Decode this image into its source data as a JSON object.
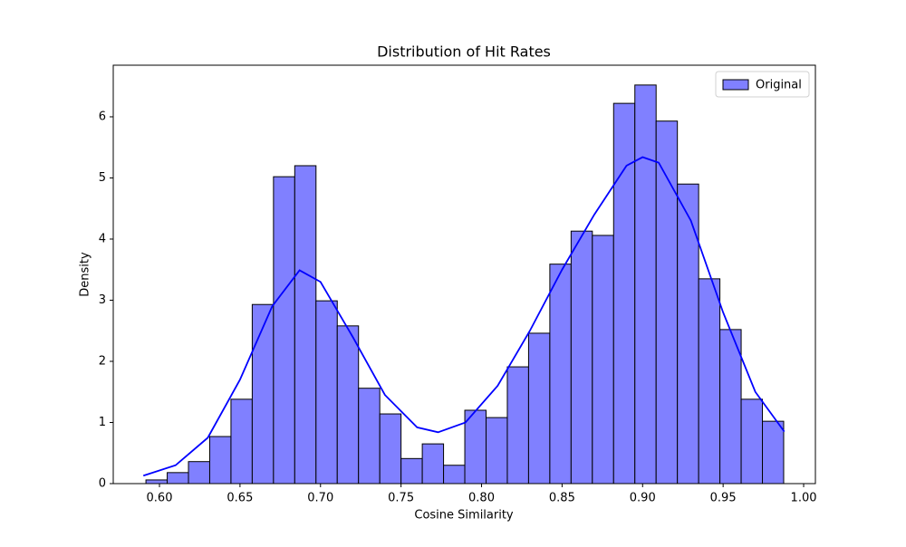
{
  "chart_data": {
    "type": "histogram",
    "title": "Distribution of Hit Rates",
    "xlabel": "Cosine Similarity",
    "ylabel": "Density",
    "bins": [
      0.5916,
      0.6048,
      0.618,
      0.6312,
      0.6444,
      0.6576,
      0.6708,
      0.684,
      0.6972,
      0.7104,
      0.7236,
      0.7368,
      0.75,
      0.7632,
      0.7764,
      0.7896,
      0.8028,
      0.816,
      0.8292,
      0.8424,
      0.8556,
      0.8688,
      0.882,
      0.8952,
      0.9084,
      0.9216,
      0.9348,
      0.948,
      0.9612,
      0.9744,
      0.9876
    ],
    "series": [
      {
        "name": "Original",
        "color": "#8080ff",
        "edgecolor": "#000000",
        "values": [
          0.06,
          0.18,
          0.36,
          0.77,
          1.38,
          2.93,
          5.02,
          5.2,
          2.99,
          2.58,
          1.56,
          1.14,
          0.41,
          0.65,
          0.3,
          1.2,
          1.08,
          1.91,
          2.46,
          3.59,
          4.13,
          4.06,
          6.22,
          6.52,
          5.93,
          4.9,
          3.35,
          2.52,
          1.38,
          1.02
        ]
      }
    ],
    "kde": {
      "color": "#0000ff",
      "x": [
        0.59,
        0.61,
        0.63,
        0.65,
        0.67,
        0.687,
        0.7,
        0.72,
        0.74,
        0.76,
        0.773,
        0.79,
        0.81,
        0.83,
        0.85,
        0.87,
        0.89,
        0.9,
        0.91,
        0.93,
        0.95,
        0.97,
        0.988
      ],
      "values": [
        0.13,
        0.3,
        0.75,
        1.7,
        2.9,
        3.49,
        3.3,
        2.4,
        1.45,
        0.92,
        0.84,
        1.0,
        1.6,
        2.5,
        3.5,
        4.4,
        5.2,
        5.34,
        5.25,
        4.3,
        2.8,
        1.5,
        0.85
      ]
    },
    "xlim": [
      0.5713,
      1.0073
    ],
    "ylim": [
      0,
      6.844
    ],
    "xticks": [
      {
        "value": 0.6,
        "label": "0.60"
      },
      {
        "value": 0.65,
        "label": "0.65"
      },
      {
        "value": 0.7,
        "label": "0.70"
      },
      {
        "value": 0.75,
        "label": "0.75"
      },
      {
        "value": 0.8,
        "label": "0.80"
      },
      {
        "value": 0.85,
        "label": "0.85"
      },
      {
        "value": 0.9,
        "label": "0.90"
      },
      {
        "value": 0.95,
        "label": "0.95"
      },
      {
        "value": 1.0,
        "label": "1.00"
      }
    ],
    "yticks": [
      0,
      1,
      2,
      3,
      4,
      5,
      6
    ],
    "legend": "upper right"
  }
}
